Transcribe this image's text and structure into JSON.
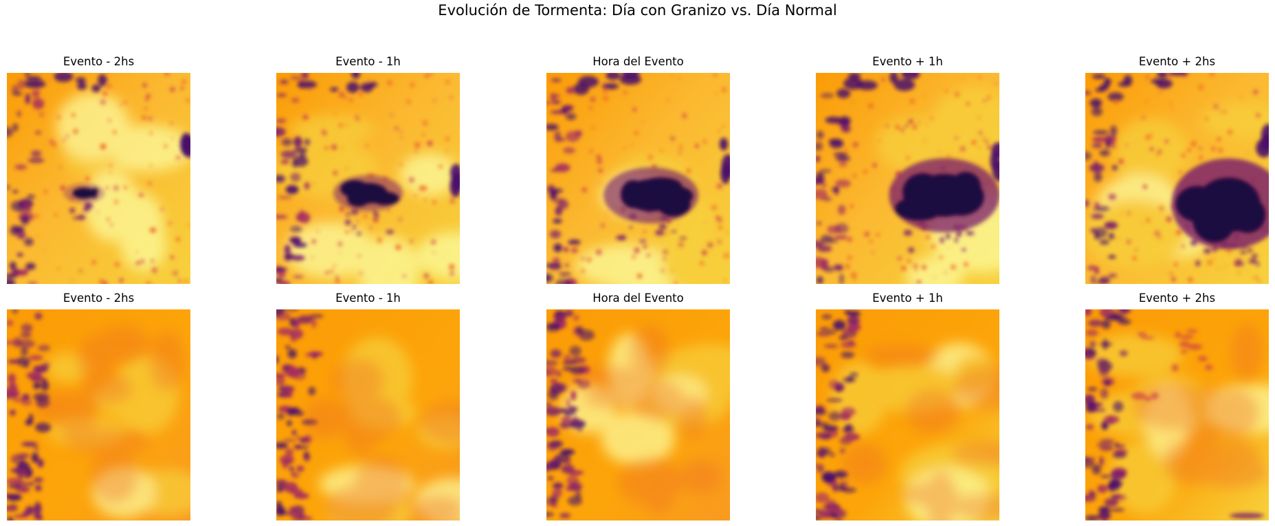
{
  "figure": {
    "title": "Evolución de Tormenta: Día con Granizo vs. Día Normal"
  },
  "colormap": [
    "#000004",
    "#1b0c41",
    "#4a0c6b",
    "#781c6d",
    "#a52c60",
    "#cf4446",
    "#ed6925",
    "#fb9b06",
    "#f7d13d",
    "#fcffa4"
  ],
  "rows": [
    {
      "row": "hail-day",
      "panels": [
        {
          "title": "Evento - 2hs",
          "storm_intensity": 0.25
        },
        {
          "title": "Evento - 1h",
          "storm_intensity": 0.5
        },
        {
          "title": "Hora del Evento",
          "storm_intensity": 0.72
        },
        {
          "title": "Evento + 1h",
          "storm_intensity": 0.9
        },
        {
          "title": "Evento + 2hs",
          "storm_intensity": 1.0
        }
      ]
    },
    {
      "row": "normal-day",
      "panels": [
        {
          "title": "Evento - 2hs",
          "storm_intensity": 0
        },
        {
          "title": "Evento - 1h",
          "storm_intensity": 0
        },
        {
          "title": "Hora del Evento",
          "storm_intensity": 0
        },
        {
          "title": "Evento + 1h",
          "storm_intensity": 0
        },
        {
          "title": "Evento + 2hs",
          "storm_intensity": 0
        }
      ]
    }
  ]
}
